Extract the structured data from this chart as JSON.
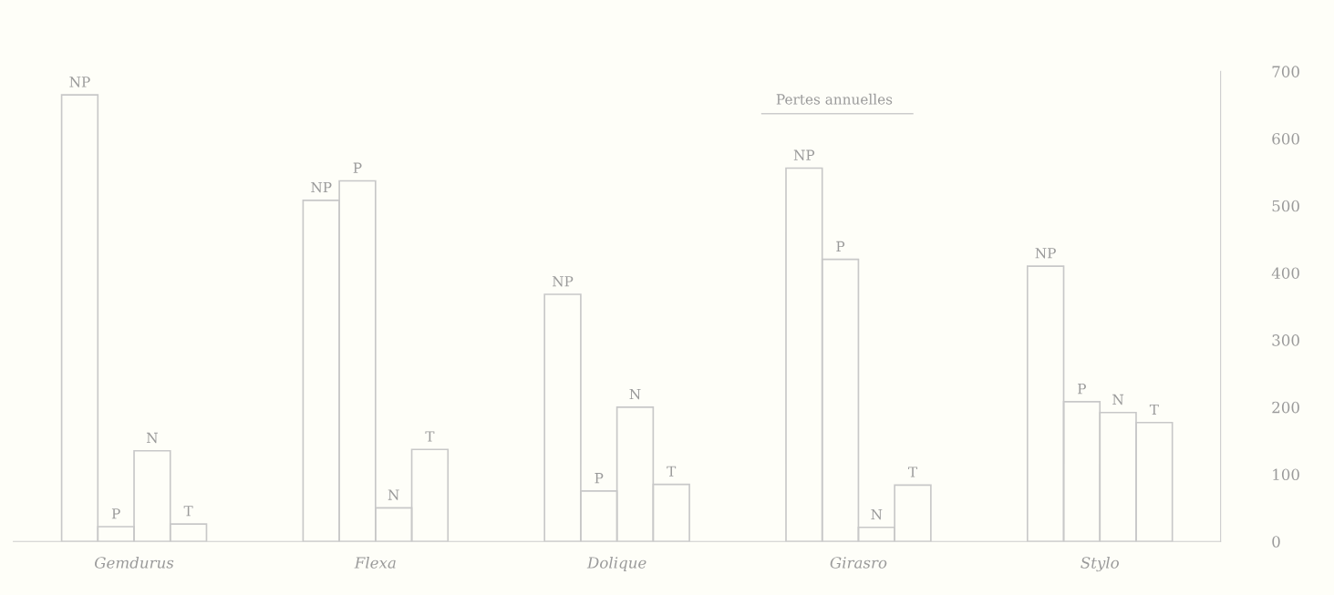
{
  "chart_data": {
    "type": "bar",
    "categories": [
      "Gemdurus",
      "Flexa",
      "Dolique",
      "Girasro",
      "Stylo"
    ],
    "series": [
      {
        "name": "NP",
        "color": "#c8c8c8",
        "values": [
          665,
          508,
          368,
          556,
          410
        ]
      },
      {
        "name": "P",
        "color": "#c8c8c8",
        "values": [
          22,
          537,
          75,
          420,
          208
        ]
      },
      {
        "name": "N",
        "color": "#c8c8c8",
        "values": [
          135,
          50,
          200,
          21,
          192
        ]
      },
      {
        "name": "T",
        "color": "#c8c8c8",
        "values": [
          26,
          137,
          85,
          84,
          177
        ]
      }
    ],
    "ylim": [
      0,
      700
    ],
    "yticks": [
      0,
      100,
      200,
      300,
      400,
      500,
      600,
      700
    ],
    "annotations": [
      "Pertes annuelles"
    ],
    "grid": false,
    "legend": false
  }
}
